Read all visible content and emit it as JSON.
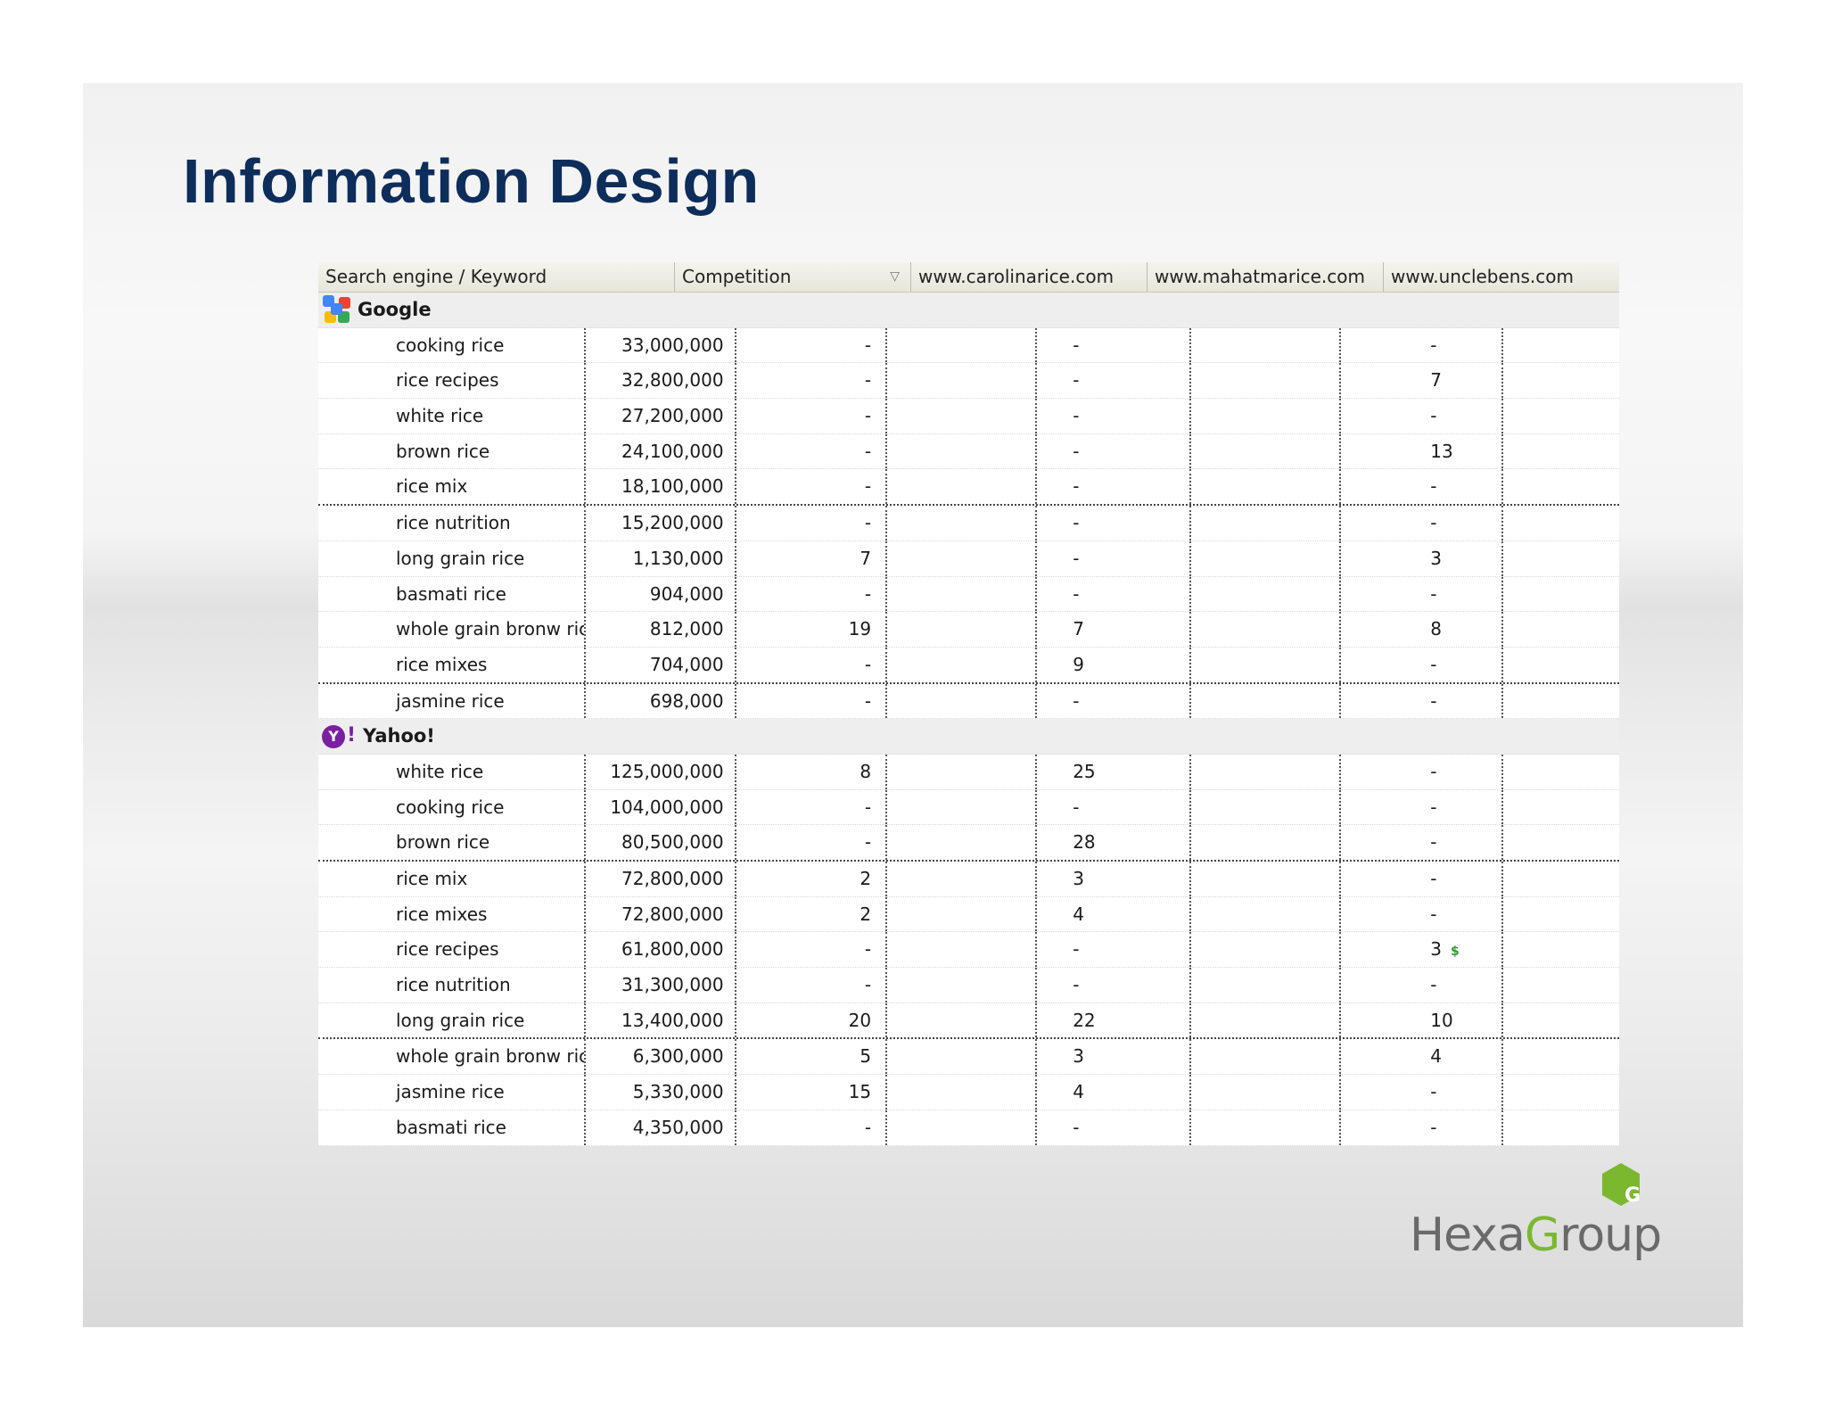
{
  "slide": {
    "title": "Information Design"
  },
  "table": {
    "columns": [
      "Search engine / Keyword",
      "Competition",
      "www.carolinarice.com",
      "www.mahatmarice.com",
      "www.unclebens.com"
    ],
    "groups": [
      {
        "name": "Google",
        "icon": "google-icon",
        "rows": [
          {
            "keyword": "cooking rice",
            "competition": "33,000,000",
            "carolina": "-",
            "mahatma": "-",
            "unclebens": "-"
          },
          {
            "keyword": "rice recipes",
            "competition": "32,800,000",
            "carolina": "-",
            "mahatma": "-",
            "unclebens": "7"
          },
          {
            "keyword": "white rice",
            "competition": "27,200,000",
            "carolina": "-",
            "mahatma": "-",
            "unclebens": "-"
          },
          {
            "keyword": "brown rice",
            "competition": "24,100,000",
            "carolina": "-",
            "mahatma": "-",
            "unclebens": "13"
          },
          {
            "keyword": "rice mix",
            "competition": "18,100,000",
            "carolina": "-",
            "mahatma": "-",
            "unclebens": "-"
          },
          {
            "keyword": "rice nutrition",
            "competition": "15,200,000",
            "carolina": "-",
            "mahatma": "-",
            "unclebens": "-"
          },
          {
            "keyword": "long grain rice",
            "competition": "1,130,000",
            "carolina": "7",
            "mahatma": "-",
            "unclebens": "3"
          },
          {
            "keyword": "basmati rice",
            "competition": "904,000",
            "carolina": "-",
            "mahatma": "-",
            "unclebens": "-"
          },
          {
            "keyword": "whole grain bronw rice",
            "competition": "812,000",
            "carolina": "19",
            "mahatma": "7",
            "unclebens": "8"
          },
          {
            "keyword": "rice mixes",
            "competition": "704,000",
            "carolina": "-",
            "mahatma": "9",
            "unclebens": "-"
          },
          {
            "keyword": "jasmine rice",
            "competition": "698,000",
            "carolina": "-",
            "mahatma": "-",
            "unclebens": "-"
          }
        ]
      },
      {
        "name": "Yahoo!",
        "icon": "yahoo-icon",
        "rows": [
          {
            "keyword": "white rice",
            "competition": "125,000,000",
            "carolina": "8",
            "mahatma": "25",
            "unclebens": "-"
          },
          {
            "keyword": "cooking rice",
            "competition": "104,000,000",
            "carolina": "-",
            "mahatma": "-",
            "unclebens": "-"
          },
          {
            "keyword": "brown rice",
            "competition": "80,500,000",
            "carolina": "-",
            "mahatma": "28",
            "unclebens": "-"
          },
          {
            "keyword": "rice mix",
            "competition": "72,800,000",
            "carolina": "2",
            "mahatma": "3",
            "unclebens": "-"
          },
          {
            "keyword": "rice mixes",
            "competition": "72,800,000",
            "carolina": "2",
            "mahatma": "4",
            "unclebens": "-"
          },
          {
            "keyword": "rice recipes",
            "competition": "61,800,000",
            "carolina": "-",
            "mahatma": "-",
            "unclebens": "3",
            "unclebens_badge": "$"
          },
          {
            "keyword": "rice nutrition",
            "competition": "31,300,000",
            "carolina": "-",
            "mahatma": "-",
            "unclebens": "-"
          },
          {
            "keyword": "long grain rice",
            "competition": "13,400,000",
            "carolina": "20",
            "mahatma": "22",
            "unclebens": "10"
          },
          {
            "keyword": "whole grain bronw rice",
            "competition": "6,300,000",
            "carolina": "5",
            "mahatma": "3",
            "unclebens": "4"
          },
          {
            "keyword": "jasmine rice",
            "competition": "5,330,000",
            "carolina": "15",
            "mahatma": "4",
            "unclebens": "-"
          },
          {
            "keyword": "basmati rice",
            "competition": "4,350,000",
            "carolina": "-",
            "mahatma": "-",
            "unclebens": "-"
          }
        ]
      }
    ]
  },
  "logo": {
    "prefix": "Hexa",
    "accent_letter": "G",
    "suffix": "roup",
    "hex_letter": "G",
    "text_color": "#6a6a6a",
    "accent_color": "#7cb82f"
  },
  "colors": {
    "title": "#0d2d5b",
    "money_badge": "#2ca02c",
    "yahoo_purple": "#7b1fa2"
  }
}
